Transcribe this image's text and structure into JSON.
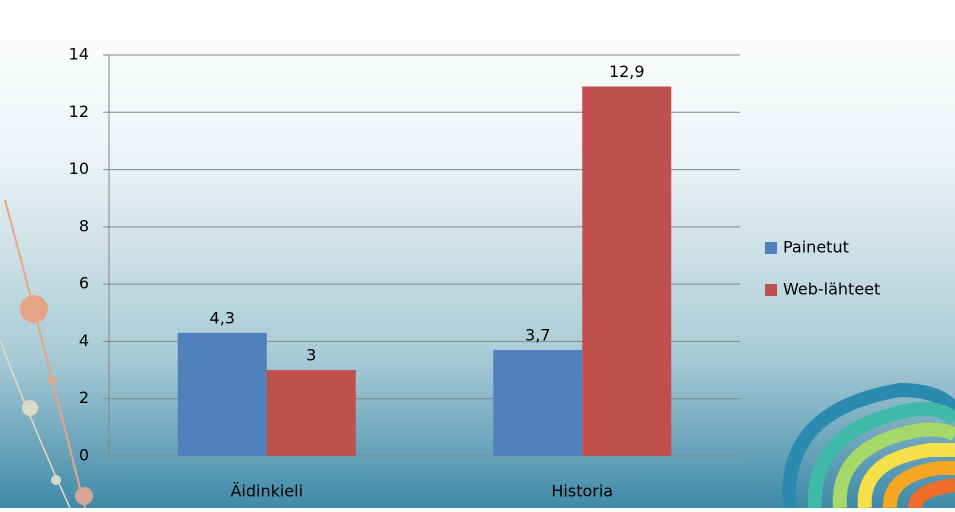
{
  "chart_data": {
    "type": "bar",
    "categories": [
      "Äidinkieli",
      "Historia"
    ],
    "series": [
      {
        "name": "Painetut",
        "color": "#4f81bd",
        "values": [
          4.3,
          3.7
        ],
        "value_labels": [
          "4,3",
          "3,7"
        ]
      },
      {
        "name": "Web-lähteet",
        "color": "#c0504d",
        "values": [
          3,
          12.9
        ],
        "value_labels": [
          "3",
          "12,9"
        ]
      }
    ],
    "ylim": [
      0,
      14
    ],
    "yticks": [
      0,
      2,
      4,
      6,
      8,
      10,
      12,
      14
    ],
    "grid": true,
    "legend": "right"
  }
}
